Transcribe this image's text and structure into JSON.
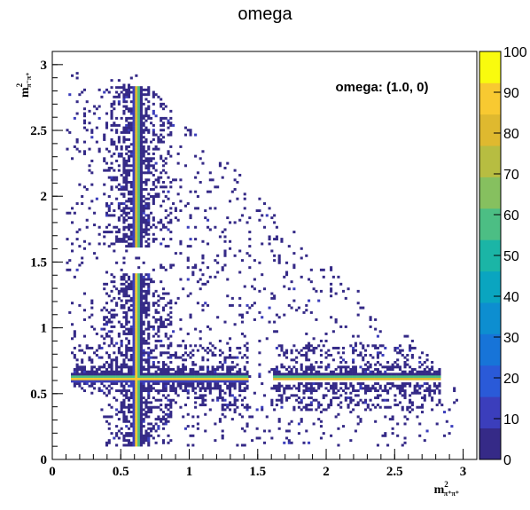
{
  "chart_data": {
    "type": "heatmap",
    "title": "omega",
    "annotation": "omega: (1.0, 0)",
    "xlabel": {
      "base": "m",
      "sup": "2",
      "sub": "π⁺π⁺"
    },
    "ylabel": {
      "base": "m",
      "sup": "2",
      "sub": "π⁻π⁺"
    },
    "xlim": [
      0,
      3.1
    ],
    "ylim": [
      0,
      3.1
    ],
    "x_ticks": [
      "0",
      "0.5",
      "1",
      "1.5",
      "2",
      "2.5",
      "3"
    ],
    "y_ticks": [
      "0",
      "0.5",
      "1",
      "1.5",
      "2",
      "2.5",
      "3"
    ],
    "z_range": [
      0,
      100
    ],
    "colorbar_ticks": [
      "0",
      "10",
      "20",
      "30",
      "40",
      "50",
      "60",
      "70",
      "80",
      "90",
      "100"
    ],
    "bands": [
      {
        "orientation": "vertical",
        "position": 0.61,
        "from": 0.1,
        "to": 1.4,
        "peak": 100
      },
      {
        "orientation": "vertical",
        "position": 0.61,
        "from": 1.6,
        "to": 2.82,
        "peak": 95
      },
      {
        "orientation": "horizontal",
        "position": 0.61,
        "from": 0.12,
        "to": 1.42,
        "peak": 100
      },
      {
        "orientation": "horizontal",
        "position": 0.61,
        "from": 1.6,
        "to": 2.83,
        "peak": 95
      }
    ],
    "grid": false,
    "colorbar": "right"
  },
  "colors": {
    "palette": [
      "#352a87",
      "#3b3ebc",
      "#2a5ad8",
      "#1774d8",
      "#0d8ed0",
      "#0aa5c0",
      "#1bb5a6",
      "#4cbe84",
      "#86c05f",
      "#b7bd41",
      "#dfb92f",
      "#f8c931",
      "#f9fb0e"
    ],
    "frame": "#000000",
    "background": "#ffffff"
  }
}
